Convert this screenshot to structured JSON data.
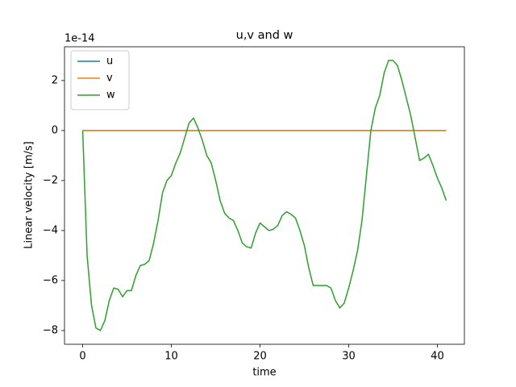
{
  "chart_data": {
    "type": "line",
    "title": "u,v and w",
    "xlabel": "time",
    "ylabel": "Linear velocity [m/s]",
    "offset_label": "1e-14",
    "x": [
      0,
      0.5,
      1,
      1.5,
      2,
      2.5,
      3,
      3.5,
      4,
      4.5,
      5,
      5.5,
      6,
      6.5,
      7,
      7.5,
      8,
      8.5,
      9,
      9.5,
      10,
      10.5,
      11,
      11.5,
      12,
      12.5,
      13,
      13.5,
      14,
      14.5,
      15,
      15.5,
      16,
      16.5,
      17,
      17.5,
      18,
      18.5,
      19,
      19.5,
      20,
      20.5,
      21,
      21.5,
      22,
      22.5,
      23,
      23.5,
      24,
      24.5,
      25,
      25.5,
      26,
      26.5,
      27,
      27.5,
      28,
      28.5,
      29,
      29.5,
      30,
      30.5,
      31,
      31.5,
      32,
      32.5,
      33,
      33.5,
      34,
      34.5,
      35,
      35.5,
      36,
      36.5,
      37,
      37.5,
      38,
      38.5,
      39,
      39.5,
      40,
      40.5,
      41
    ],
    "series": [
      {
        "name": "u",
        "color": "#1f77b4",
        "values": [
          0,
          0,
          0,
          0,
          0,
          0,
          0,
          0,
          0,
          0,
          0,
          0,
          0,
          0,
          0,
          0,
          0,
          0,
          0,
          0,
          0,
          0,
          0,
          0,
          0,
          0,
          0,
          0,
          0,
          0,
          0,
          0,
          0,
          0,
          0,
          0,
          0,
          0,
          0,
          0,
          0,
          0,
          0,
          0,
          0,
          0,
          0,
          0,
          0,
          0,
          0,
          0,
          0,
          0,
          0,
          0,
          0,
          0,
          0,
          0,
          0,
          0,
          0,
          0,
          0,
          0,
          0,
          0,
          0,
          0,
          0,
          0,
          0,
          0,
          0,
          0,
          0,
          0,
          0,
          0,
          0,
          0,
          0
        ]
      },
      {
        "name": "v",
        "color": "#ff7f0e",
        "values": [
          0,
          0,
          0,
          0,
          0,
          0,
          0,
          0,
          0,
          0,
          0,
          0,
          0,
          0,
          0,
          0,
          0,
          0,
          0,
          0,
          0,
          0,
          0,
          0,
          0,
          0,
          0,
          0,
          0,
          0,
          0,
          0,
          0,
          0,
          0,
          0,
          0,
          0,
          0,
          0,
          0,
          0,
          0,
          0,
          0,
          0,
          0,
          0,
          0,
          0,
          0,
          0,
          0,
          0,
          0,
          0,
          0,
          0,
          0,
          0,
          0,
          0,
          0,
          0,
          0,
          0,
          0,
          0,
          0,
          0,
          0,
          0,
          0,
          0,
          0,
          0,
          0,
          0,
          0,
          0,
          0,
          0,
          0
        ]
      },
      {
        "name": "w",
        "color": "#2ca02c",
        "values": [
          0,
          -5,
          -7,
          -7.9,
          -8,
          -7.6,
          -6.8,
          -6.3,
          -6.35,
          -6.65,
          -6.4,
          -6.4,
          -5.8,
          -5.4,
          -5.35,
          -5.2,
          -4.5,
          -3.6,
          -2.5,
          -2,
          -1.8,
          -1.3,
          -0.9,
          -0.3,
          0.3,
          0.5,
          0.1,
          -0.4,
          -1,
          -1.3,
          -2,
          -2.8,
          -3.3,
          -3.5,
          -3.6,
          -4,
          -4.5,
          -4.65,
          -4.7,
          -4.1,
          -3.7,
          -3.85,
          -4,
          -3.95,
          -3.8,
          -3.4,
          -3.25,
          -3.35,
          -3.5,
          -4,
          -4.6,
          -5.5,
          -6.2,
          -6.2,
          -6.2,
          -6.2,
          -6.3,
          -6.8,
          -7.1,
          -6.9,
          -6.3,
          -5.6,
          -4.8,
          -3.6,
          -1.8,
          0,
          0.9,
          1.4,
          2.3,
          2.8,
          2.8,
          2.6,
          2,
          1.3,
          0.6,
          -0.3,
          -1.2,
          -1.1,
          -0.95,
          -1.4,
          -1.9,
          -2.3,
          -2.8
        ]
      }
    ],
    "xlim": [
      -2.05,
      43.05
    ],
    "xticks": [
      0,
      10,
      20,
      30,
      40
    ],
    "ylim": [
      -8.55,
      3.35
    ],
    "yticks": [
      {
        "value": -8,
        "label": "−8"
      },
      {
        "value": -6,
        "label": "−6"
      },
      {
        "value": -4,
        "label": "−4"
      },
      {
        "value": -2,
        "label": "−2"
      },
      0,
      2
    ],
    "legend": "upper left",
    "grid": false
  }
}
